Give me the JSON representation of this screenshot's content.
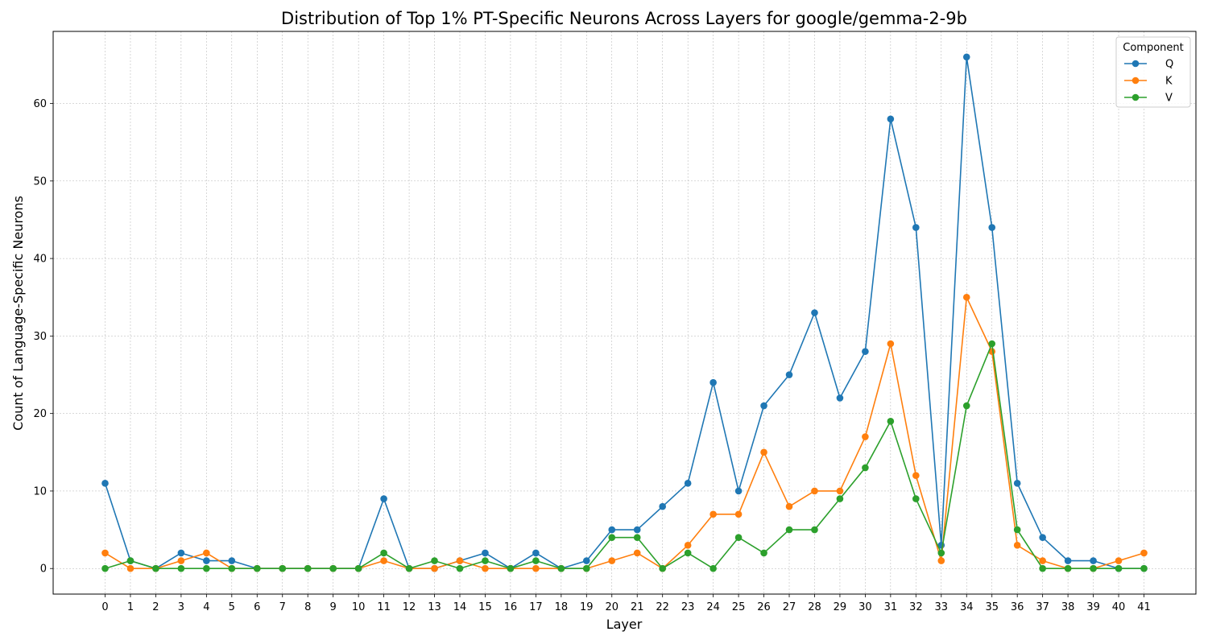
{
  "chart_data": {
    "type": "line",
    "title": "Distribution of Top 1% PT-Specific Neurons Across Layers for google/gemma-2-9b",
    "xlabel": "Layer",
    "ylabel": "Count of Language-Specific Neurons",
    "x": [
      0,
      1,
      2,
      3,
      4,
      5,
      6,
      7,
      8,
      9,
      10,
      11,
      12,
      13,
      14,
      15,
      16,
      17,
      18,
      19,
      20,
      21,
      22,
      23,
      24,
      25,
      26,
      27,
      28,
      29,
      30,
      31,
      32,
      33,
      34,
      35,
      36,
      37,
      38,
      39,
      40,
      41
    ],
    "xlim": [
      -2.05,
      43.05
    ],
    "ylim": [
      -3.3,
      69.3
    ],
    "yticks": [
      0,
      10,
      20,
      30,
      40,
      50,
      60
    ],
    "grid": true,
    "legend": {
      "title": "Component",
      "placement": "top-right"
    },
    "series": [
      {
        "name": "Q",
        "color": "#1f77b4",
        "values": [
          11,
          1,
          0,
          2,
          1,
          1,
          0,
          0,
          0,
          0,
          0,
          9,
          0,
          0,
          1,
          2,
          0,
          2,
          0,
          1,
          5,
          5,
          8,
          11,
          24,
          10,
          21,
          25,
          33,
          22,
          28,
          58,
          44,
          3,
          66,
          44,
          11,
          4,
          1,
          1,
          0,
          0
        ]
      },
      {
        "name": "K",
        "color": "#ff7f0e",
        "values": [
          2,
          0,
          0,
          1,
          2,
          0,
          0,
          0,
          0,
          0,
          0,
          1,
          0,
          0,
          1,
          0,
          0,
          0,
          0,
          0,
          1,
          2,
          0,
          3,
          7,
          7,
          15,
          8,
          10,
          10,
          17,
          29,
          12,
          1,
          35,
          28,
          3,
          1,
          0,
          0,
          1,
          2
        ]
      },
      {
        "name": "V",
        "color": "#2ca02c",
        "values": [
          0,
          1,
          0,
          0,
          0,
          0,
          0,
          0,
          0,
          0,
          0,
          2,
          0,
          1,
          0,
          1,
          0,
          1,
          0,
          0,
          4,
          4,
          0,
          2,
          0,
          4,
          2,
          5,
          5,
          9,
          13,
          19,
          9,
          2,
          21,
          29,
          5,
          0,
          0,
          0,
          0,
          0
        ]
      }
    ]
  }
}
